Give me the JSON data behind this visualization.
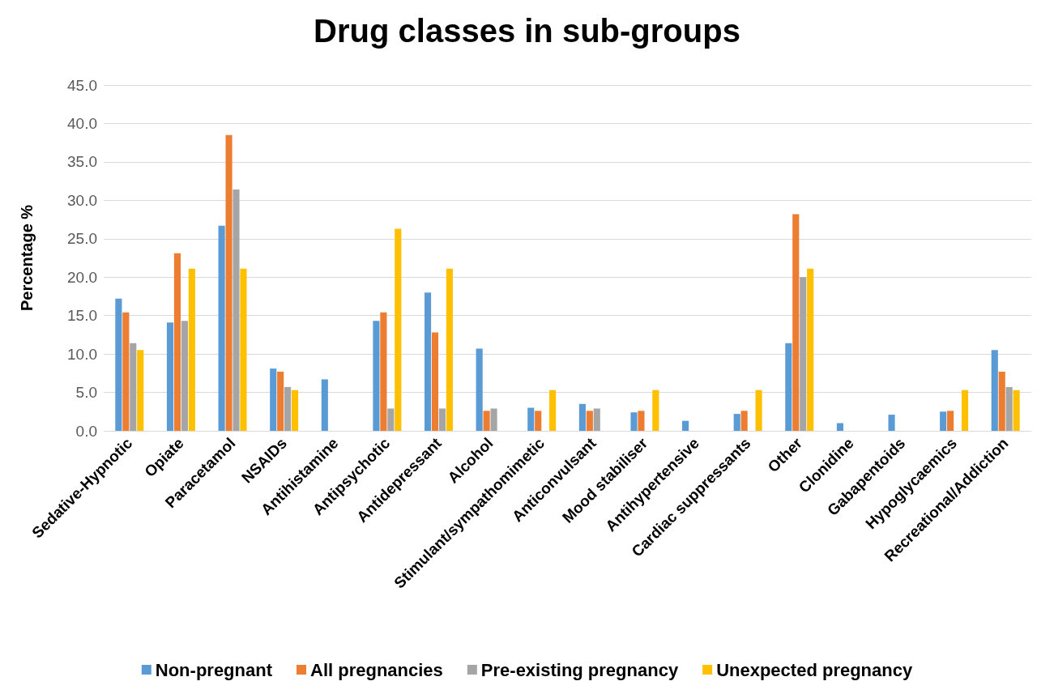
{
  "chart_data": {
    "type": "bar",
    "title": "Drug classes in sub-groups",
    "ylabel": "Percentage %",
    "categories": [
      "Sedative-Hypnotic",
      "Opiate",
      "Paracetamol",
      "NSAIDs",
      "Antihistamine",
      "Antipsychotic",
      "Antidepressant",
      "Alcohol",
      "Stimulant/sympathomimetic",
      "Anticonvulsant",
      "Mood stabiliser",
      "Antihypertensive",
      "Cardiac suppressants",
      "Other",
      "Clonidine",
      "Gabapentoids",
      "Hypoglycaemics",
      "Recreational/Addiction"
    ],
    "series": [
      {
        "name": "Non-pregnant",
        "color": "#5b9bd5",
        "values": [
          17.2,
          14.1,
          26.7,
          8.1,
          6.7,
          14.3,
          18.0,
          10.7,
          3.0,
          3.5,
          2.4,
          1.3,
          2.2,
          11.4,
          1.0,
          2.1,
          2.5,
          10.5
        ]
      },
      {
        "name": "All pregnancies",
        "color": "#ed7d31",
        "values": [
          15.4,
          23.1,
          38.5,
          7.7,
          0,
          15.4,
          12.8,
          2.6,
          2.6,
          2.6,
          2.6,
          0,
          2.6,
          28.2,
          0,
          0,
          2.6,
          7.7
        ]
      },
      {
        "name": "Pre-existing pregnancy",
        "color": "#a5a5a5",
        "values": [
          11.4,
          14.3,
          31.4,
          5.7,
          0,
          2.9,
          2.9,
          2.9,
          0,
          2.9,
          0,
          0,
          0,
          20.0,
          0,
          0,
          0,
          5.7
        ]
      },
      {
        "name": "Unexpected pregnancy",
        "color": "#ffc000",
        "values": [
          10.5,
          21.1,
          21.1,
          5.3,
          0,
          26.3,
          21.1,
          0,
          5.3,
          0,
          5.3,
          0,
          5.3,
          21.1,
          0,
          0,
          5.3,
          5.3
        ]
      }
    ],
    "ylim": [
      0,
      45
    ],
    "yticks": [
      {
        "value": 0,
        "label": "0.0"
      },
      {
        "value": 5,
        "label": "5.0"
      },
      {
        "value": 10,
        "label": "10.0"
      },
      {
        "value": 15,
        "label": "15.0"
      },
      {
        "value": 20,
        "label": "20.0"
      },
      {
        "value": 25,
        "label": "25.0"
      },
      {
        "value": 30,
        "label": "30.0"
      },
      {
        "value": 35,
        "label": "35.0"
      },
      {
        "value": 40,
        "label": "40.0"
      },
      {
        "value": 45,
        "label": "45.0"
      }
    ],
    "grid": "y",
    "legend": "bottom"
  }
}
